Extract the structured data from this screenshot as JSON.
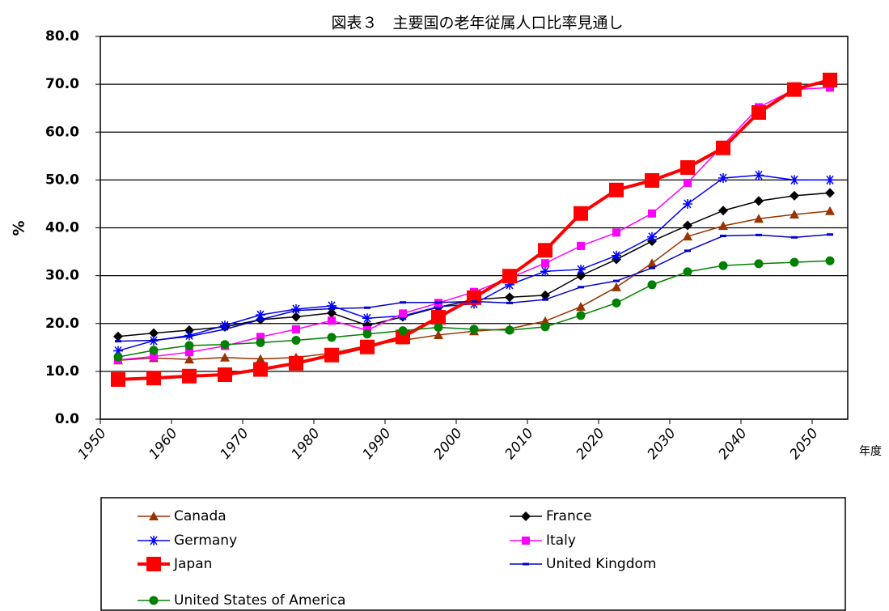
{
  "chart_data": {
    "type": "line",
    "title": "図表３　主要国の老年従属人口比率見通し",
    "y_label": "%",
    "x_label": "年度",
    "x": [
      1952.5,
      1957.5,
      1962.5,
      1967.5,
      1972.5,
      1977.5,
      1982.5,
      1987.5,
      1992.5,
      1997.5,
      2002.5,
      2007.5,
      2012.5,
      2017.5,
      2022.5,
      2027.5,
      2032.5,
      2037.5,
      2042.5,
      2047.5,
      2052.5
    ],
    "xlim": [
      1950,
      2055
    ],
    "xticks": [
      1950,
      1960,
      1970,
      1980,
      1990,
      2000,
      2010,
      2020,
      2030,
      2040,
      2050
    ],
    "ylim": [
      0,
      80
    ],
    "yticks": [
      {
        "value": 0,
        "label": "0.0"
      },
      {
        "value": 10,
        "label": "10.0"
      },
      {
        "value": 20,
        "label": "20.0"
      },
      {
        "value": 30,
        "label": "30.0"
      },
      {
        "value": 40,
        "label": "40.0"
      },
      {
        "value": 50,
        "label": "50.0"
      },
      {
        "value": 60,
        "label": "60.0"
      },
      {
        "value": 70,
        "label": "70.0"
      },
      {
        "value": 80,
        "label": "80.0"
      }
    ],
    "grid": true,
    "legend": "bottom",
    "series": [
      {
        "name": "Canada",
        "color": "#993300",
        "marker": "triangle",
        "values": [
          12.3,
          12.8,
          12.5,
          12.9,
          12.6,
          12.9,
          13.8,
          15.4,
          16.5,
          17.6,
          18.4,
          18.9,
          20.5,
          23.5,
          27.6,
          32.6,
          38.2,
          40.4,
          41.9,
          42.8,
          43.5
        ]
      },
      {
        "name": "France",
        "color": "#000000",
        "marker": "diamond",
        "values": [
          17.3,
          18.0,
          18.6,
          19.3,
          20.8,
          21.4,
          22.2,
          19.6,
          21.4,
          23.4,
          25.0,
          25.5,
          25.9,
          30.0,
          33.4,
          37.2,
          40.5,
          43.6,
          45.6,
          46.7,
          47.3
        ]
      },
      {
        "name": "Germany",
        "color": "#0000ff",
        "marker": "star",
        "values": [
          14.3,
          16.4,
          17.5,
          19.6,
          21.8,
          23.0,
          23.7,
          21.1,
          21.6,
          23.5,
          24.1,
          28.1,
          30.9,
          31.3,
          34.2,
          38.1,
          45.0,
          50.4,
          51.0,
          50.0,
          50.0
        ]
      },
      {
        "name": "Italy",
        "color": "#ff00ff",
        "marker": "square",
        "values": [
          12.4,
          13.1,
          14.0,
          15.3,
          17.2,
          18.8,
          20.6,
          18.6,
          22.1,
          24.3,
          26.6,
          29.5,
          32.6,
          36.2,
          39.0,
          43.0,
          49.4,
          57.3,
          65.2,
          68.9,
          69.3
        ]
      },
      {
        "name": "Japan",
        "color": "#ff0000",
        "marker": "bigsquare",
        "values": [
          8.3,
          8.6,
          9.0,
          9.3,
          10.4,
          11.7,
          13.4,
          15.1,
          17.2,
          21.3,
          25.4,
          29.9,
          35.3,
          43.0,
          47.9,
          49.9,
          52.6,
          56.7,
          64.1,
          68.9,
          70.9
        ]
      },
      {
        "name": "United Kingdom",
        "color": "#0000cc",
        "marker": "dash",
        "values": [
          16.3,
          16.5,
          17.3,
          18.8,
          20.8,
          22.7,
          23.1,
          23.3,
          24.4,
          24.4,
          24.6,
          24.3,
          25.0,
          27.6,
          28.9,
          31.6,
          35.2,
          38.3,
          38.5,
          38.0,
          38.6
        ]
      },
      {
        "name": "United States of America",
        "color": "#008000",
        "marker": "circle",
        "values": [
          13.0,
          14.4,
          15.4,
          15.6,
          16.0,
          16.5,
          17.1,
          17.8,
          18.5,
          19.2,
          18.8,
          18.6,
          19.3,
          21.7,
          24.3,
          28.1,
          30.8,
          32.1,
          32.5,
          32.8,
          33.1
        ]
      }
    ]
  }
}
